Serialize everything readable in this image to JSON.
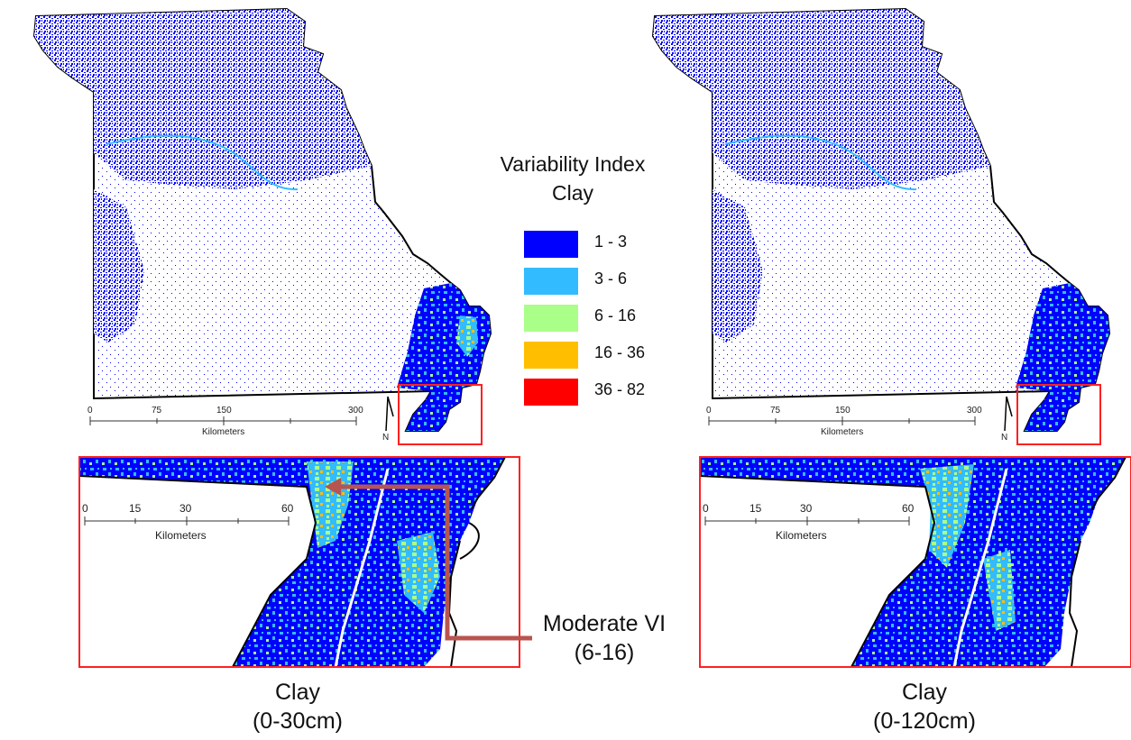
{
  "legend": {
    "title_line1": "Variability Index",
    "title_line2": "Clay",
    "classes": [
      {
        "label": "1 - 3",
        "color": "#0000ff"
      },
      {
        "label": "3 - 6",
        "color": "#33bbff"
      },
      {
        "label": "6 - 16",
        "color": "#aaff88"
      },
      {
        "label": "16 - 36",
        "color": "#ffbf00"
      },
      {
        "label": "36 - 82",
        "color": "#ff0000"
      }
    ]
  },
  "maps": [
    {
      "caption_line1": "Clay",
      "caption_line2": "(0-30cm)",
      "scale_ticks": [
        "0",
        "75",
        "150",
        "300"
      ],
      "scale_unit": "Kilometers",
      "inset_scale_ticks": [
        "0",
        "15",
        "30",
        "60"
      ],
      "inset_scale_unit": "Kilometers"
    },
    {
      "caption_line1": "Clay",
      "caption_line2": "(0-120cm)",
      "scale_ticks": [
        "0",
        "75",
        "150",
        "300"
      ],
      "scale_unit": "Kilometers",
      "inset_scale_ticks": [
        "0",
        "15",
        "30",
        "60"
      ],
      "inset_scale_unit": "Kilometers"
    }
  ],
  "north_arrow_label": "N",
  "annotation": {
    "line1": "Moderate VI",
    "line2": "(6-16)",
    "arrow_color": "#b85450"
  },
  "highlight_color": "#ff2020"
}
